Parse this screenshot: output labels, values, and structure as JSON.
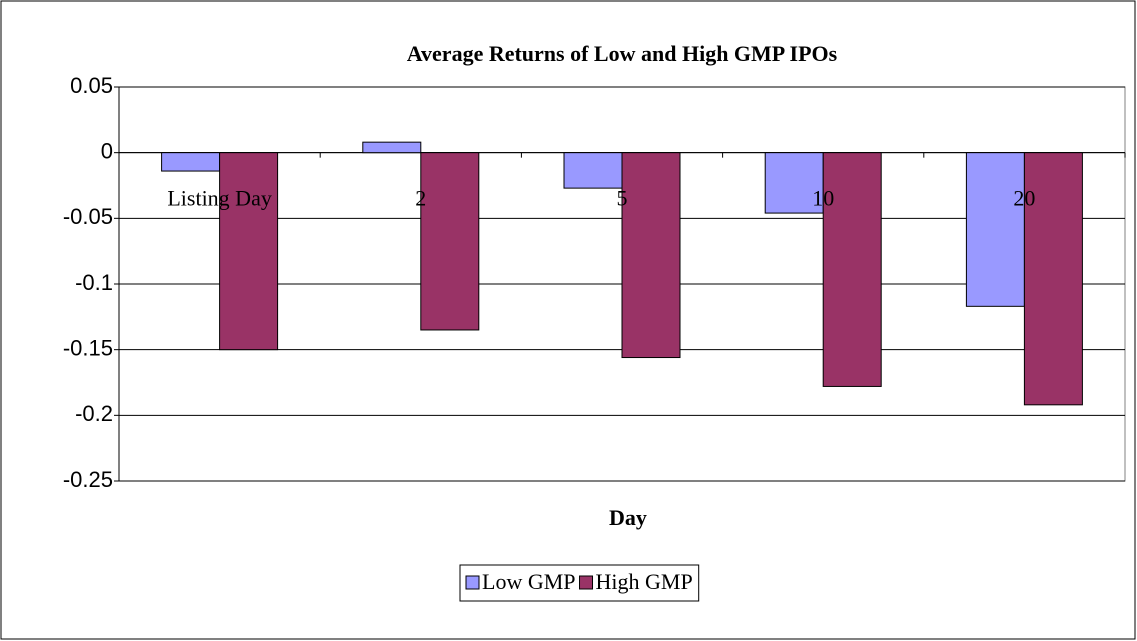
{
  "chart_data": {
    "type": "bar",
    "title": "Average Returns of Low and High GMP IPOs",
    "x_label": "Day",
    "categories": [
      "Listing Day",
      "2",
      "5",
      "10",
      "20"
    ],
    "series": [
      {
        "name": "Low GMP",
        "color": "#9999ff",
        "values": [
          -0.014,
          0.008,
          -0.027,
          -0.046,
          -0.117
        ]
      },
      {
        "name": "High GMP",
        "color": "#993366",
        "values": [
          -0.15,
          -0.135,
          -0.156,
          -0.178,
          -0.192
        ]
      }
    ],
    "ylim": [
      -0.25,
      0.05
    ],
    "yticks": [
      0.05,
      0,
      -0.05,
      -0.1,
      -0.15,
      -0.2,
      -0.25
    ],
    "grid": true,
    "legend": "bottom"
  }
}
